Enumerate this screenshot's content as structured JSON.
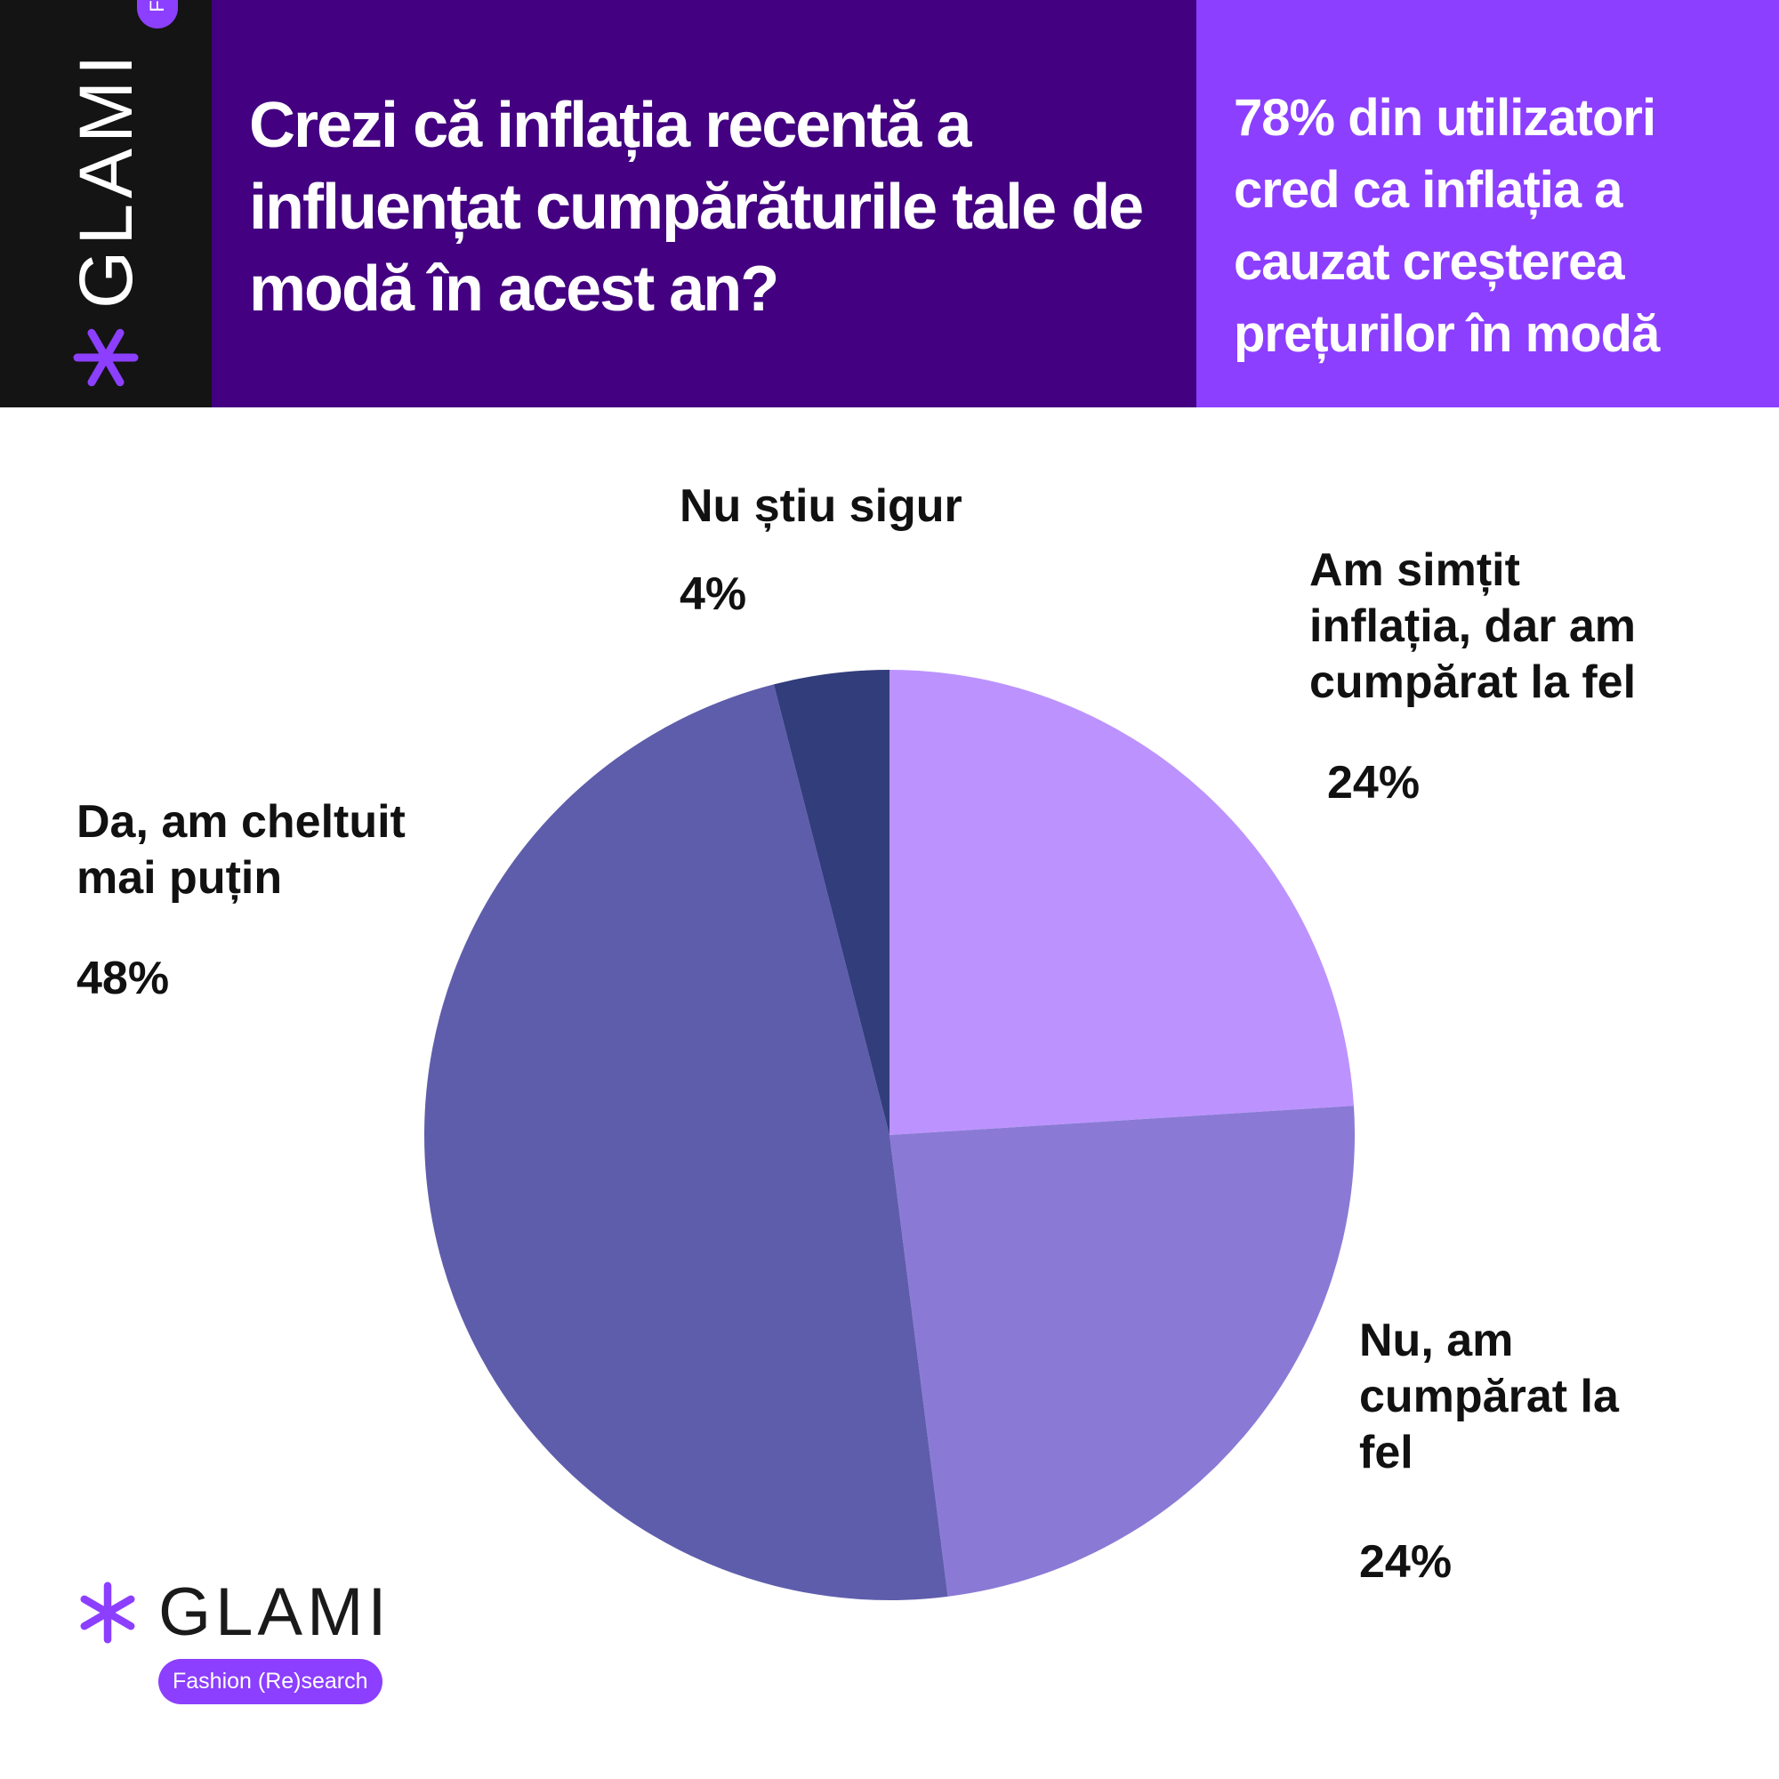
{
  "brand": {
    "name": "GLAMI",
    "tagline": "Fashion (Re)search",
    "logo_icon": "asterisk-icon",
    "accent_color": "#8c3fff"
  },
  "header": {
    "question": "Crezi că inflația recentă a influențat cumpărăturile tale de modă în acest an?",
    "insight": "78% din utilizatori cred ca inflația a cauzat creșterea prețurilor în modă",
    "question_bg": "#430080",
    "insight_bg": "#8c3fff",
    "logo_bg": "#141414"
  },
  "chart_data": {
    "type": "pie",
    "title": "Crezi că inflația recentă a influențat cumpărăturile tale de modă în acest an?",
    "start_angle": "12 o'clock",
    "direction": "clockwise",
    "legend": "none (direct labels)",
    "slices": [
      {
        "label": "Am simțit inflația, dar am cumpărat la fel",
        "value": 24,
        "value_label": "24%",
        "color": "#bc93fe"
      },
      {
        "label": "Nu, am cumpărat la fel",
        "value": 24,
        "value_label": "24%",
        "color": "#8a7ad5"
      },
      {
        "label": "Da, am cheltuit mai puțin",
        "value": 48,
        "value_label": "48%",
        "color": "#5e5dac"
      },
      {
        "label": "Nu știu sigur",
        "value": 4,
        "value_label": "4%",
        "color": "#323d7b"
      }
    ]
  }
}
